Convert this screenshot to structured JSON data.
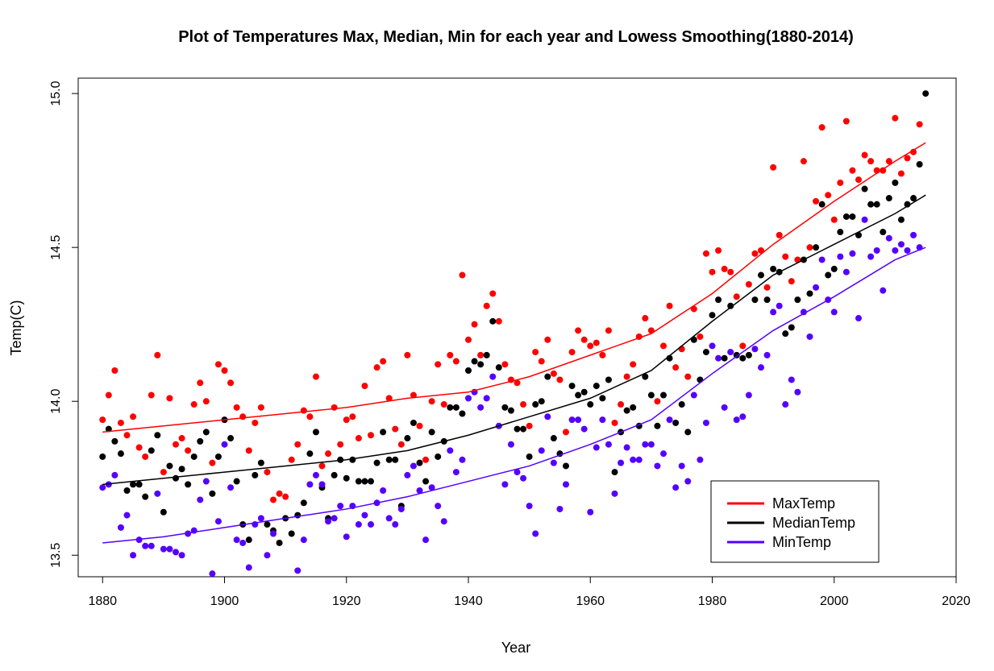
{
  "chart_data": {
    "type": "scatter",
    "title": "Plot of Temperatures Max, Median, Min for each year and Lowess Smoothing(1880-2014)",
    "xlabel": "Year",
    "ylabel": "Temp(C)",
    "xlim": [
      1876,
      2020
    ],
    "ylim": [
      13.43,
      15.05
    ],
    "xticks": [
      "1880",
      "1900",
      "1920",
      "1940",
      "1960",
      "1980",
      "2000",
      "2020"
    ],
    "xtick_values": [
      1880,
      1900,
      1920,
      1940,
      1960,
      1980,
      2000,
      2020
    ],
    "yticks": [
      "13.5",
      "14.0",
      "14.5",
      "15.0"
    ],
    "ytick_values": [
      13.5,
      14.0,
      14.5,
      15.0
    ],
    "grid": false,
    "legend_position": "bottom-right",
    "start_year": 1880,
    "series": [
      {
        "name": "MaxTemp",
        "color": "#ff0000",
        "values": [
          13.94,
          14.02,
          14.1,
          13.93,
          13.89,
          13.95,
          13.85,
          13.82,
          14.02,
          14.15,
          13.77,
          14.01,
          13.86,
          13.88,
          13.84,
          13.99,
          14.06,
          14.0,
          13.8,
          14.12,
          14.1,
          14.06,
          13.98,
          13.95,
          13.84,
          13.93,
          13.98,
          13.77,
          13.68,
          13.7,
          13.69,
          13.81,
          13.86,
          13.97,
          13.95,
          14.08,
          13.79,
          13.83,
          13.98,
          13.86,
          13.94,
          13.95,
          13.88,
          14.05,
          13.89,
          14.11,
          14.13,
          14.01,
          13.91,
          13.86,
          14.15,
          14.02,
          13.92,
          13.81,
          14.0,
          14.12,
          13.99,
          14.15,
          14.13,
          14.41,
          14.2,
          14.25,
          14.15,
          14.31,
          14.35,
          14.26,
          14.12,
          14.07,
          14.06,
          13.99,
          13.92,
          14.16,
          14.13,
          14.2,
          14.09,
          14.07,
          13.9,
          14.16,
          14.23,
          14.2,
          14.18,
          14.19,
          14.15,
          14.23,
          13.93,
          13.99,
          14.08,
          14.12,
          14.21,
          14.27,
          14.23,
          14.0,
          14.18,
          14.31,
          14.11,
          14.17,
          14.08,
          14.3,
          14.21,
          14.48,
          14.42,
          14.49,
          14.43,
          14.42,
          14.34,
          14.18,
          14.38,
          14.48,
          14.49,
          14.37,
          14.76,
          14.54,
          14.47,
          14.39,
          14.46,
          14.78,
          14.5,
          14.65,
          14.89,
          14.67,
          14.59,
          14.71,
          14.91,
          14.75,
          14.72,
          14.8,
          14.78,
          14.75,
          14.75,
          14.78,
          14.92,
          14.74,
          14.79,
          14.81,
          14.9
        ]
      },
      {
        "name": "MedianTemp",
        "color": "#000000",
        "values": [
          13.82,
          13.91,
          13.87,
          13.83,
          13.71,
          13.73,
          13.73,
          13.69,
          13.84,
          13.89,
          13.64,
          13.79,
          13.75,
          13.78,
          13.73,
          13.82,
          13.87,
          13.9,
          13.7,
          13.82,
          13.94,
          13.88,
          13.74,
          13.6,
          13.55,
          13.76,
          13.8,
          13.6,
          13.58,
          13.54,
          13.62,
          13.57,
          13.63,
          13.67,
          13.83,
          13.9,
          13.72,
          13.62,
          13.76,
          13.81,
          13.75,
          13.81,
          13.74,
          13.74,
          13.74,
          13.8,
          13.9,
          13.81,
          13.81,
          13.66,
          13.88,
          13.93,
          13.8,
          13.74,
          13.9,
          13.82,
          13.87,
          13.98,
          13.98,
          13.96,
          14.1,
          14.13,
          14.12,
          14.15,
          14.26,
          14.11,
          13.98,
          13.97,
          13.91,
          13.91,
          13.82,
          13.99,
          14.0,
          14.08,
          13.88,
          13.83,
          13.79,
          14.05,
          14.02,
          14.03,
          13.99,
          14.05,
          14.01,
          14.07,
          13.77,
          13.9,
          13.97,
          13.98,
          13.92,
          14.08,
          14.02,
          13.92,
          14.02,
          14.14,
          13.93,
          13.99,
          13.9,
          14.2,
          14.07,
          14.16,
          14.28,
          14.33,
          14.14,
          14.31,
          14.15,
          14.14,
          14.15,
          14.33,
          14.41,
          14.33,
          14.43,
          14.42,
          14.22,
          14.24,
          14.33,
          14.46,
          14.35,
          14.5,
          14.64,
          14.41,
          14.43,
          14.55,
          14.6,
          14.6,
          14.54,
          14.69,
          14.64,
          14.64,
          14.55,
          14.66,
          14.71,
          14.59,
          14.64,
          14.66,
          14.77,
          15.0
        ]
      },
      {
        "name": "MinTemp",
        "color": "#5500ff",
        "values": [
          13.72,
          13.73,
          13.76,
          13.59,
          13.63,
          13.5,
          13.55,
          13.53,
          13.53,
          13.7,
          13.52,
          13.52,
          13.51,
          13.5,
          13.57,
          13.58,
          13.68,
          13.74,
          13.44,
          13.61,
          13.86,
          13.72,
          13.55,
          13.54,
          13.46,
          13.6,
          13.62,
          13.5,
          13.57,
          13.41,
          13.39,
          13.4,
          13.45,
          13.55,
          13.73,
          13.76,
          13.73,
          13.61,
          13.62,
          13.66,
          13.56,
          13.66,
          13.6,
          13.63,
          13.6,
          13.67,
          13.71,
          13.62,
          13.6,
          13.65,
          13.76,
          13.79,
          13.71,
          13.55,
          13.72,
          13.66,
          13.61,
          13.84,
          13.77,
          13.81,
          14.01,
          14.03,
          13.98,
          14.01,
          14.08,
          13.92,
          13.73,
          13.86,
          13.77,
          13.75,
          13.66,
          13.57,
          13.84,
          13.95,
          13.8,
          13.65,
          13.73,
          13.94,
          13.94,
          13.91,
          13.64,
          13.85,
          13.94,
          13.86,
          13.7,
          13.8,
          13.85,
          13.81,
          13.81,
          13.86,
          13.86,
          13.79,
          13.83,
          13.94,
          13.72,
          13.79,
          13.74,
          14.02,
          13.81,
          13.93,
          14.18,
          14.14,
          13.98,
          14.16,
          13.94,
          13.95,
          14.02,
          14.17,
          14.11,
          14.15,
          14.29,
          14.31,
          13.99,
          14.07,
          14.03,
          14.29,
          14.21,
          14.37,
          14.46,
          14.33,
          14.29,
          14.47,
          14.42,
          14.48,
          14.27,
          14.59,
          14.47,
          14.49,
          14.36,
          14.53,
          14.49,
          14.51,
          14.49,
          14.54,
          14.5
        ]
      }
    ],
    "smoothing": [
      {
        "name": "MaxTemp",
        "x": [
          1880,
          1890,
          1900,
          1910,
          1920,
          1930,
          1940,
          1950,
          1960,
          1970,
          1980,
          1990,
          2000,
          2010,
          2015
        ],
        "y": [
          13.9,
          13.92,
          13.94,
          13.96,
          13.98,
          14.01,
          14.03,
          14.08,
          14.15,
          14.22,
          14.35,
          14.51,
          14.65,
          14.78,
          14.84
        ]
      },
      {
        "name": "MedianTemp",
        "x": [
          1880,
          1890,
          1900,
          1910,
          1920,
          1930,
          1940,
          1950,
          1960,
          1970,
          1980,
          1990,
          2000,
          2010,
          2015
        ],
        "y": [
          13.73,
          13.75,
          13.77,
          13.79,
          13.81,
          13.84,
          13.89,
          13.95,
          14.01,
          14.1,
          14.26,
          14.41,
          14.51,
          14.61,
          14.67
        ]
      },
      {
        "name": "MinTemp",
        "x": [
          1880,
          1890,
          1900,
          1910,
          1920,
          1930,
          1940,
          1950,
          1960,
          1970,
          1980,
          1990,
          2000,
          2010,
          2015
        ],
        "y": [
          13.54,
          13.56,
          13.59,
          13.62,
          13.65,
          13.69,
          13.74,
          13.79,
          13.86,
          13.94,
          14.09,
          14.23,
          14.34,
          14.46,
          14.5
        ]
      }
    ],
    "legend": [
      "MaxTemp",
      "MedianTemp",
      "MinTemp"
    ]
  }
}
